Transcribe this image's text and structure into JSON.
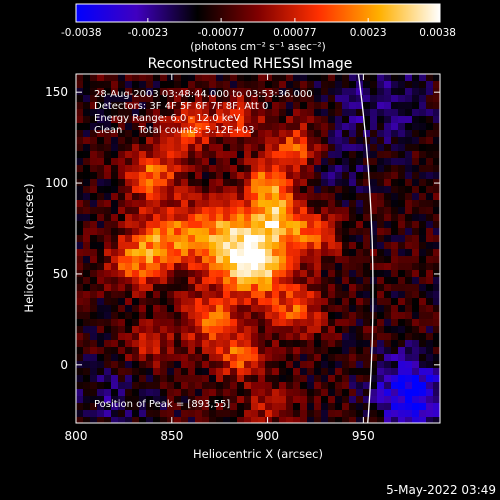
{
  "colorbar": {
    "ticks": [
      "-0.0038",
      "-0.0023",
      "-0.00077",
      "0.00077",
      "0.0023",
      "0.0038"
    ],
    "unit_label": "(photons cm⁻² s⁻¹ asec⁻²)",
    "range": [
      -0.0038,
      0.0038
    ],
    "colors": [
      "#0000ff",
      "#4000c0",
      "#000000",
      "#800000",
      "#ff3000",
      "#ffb000",
      "#ffffff"
    ]
  },
  "chart_data": {
    "type": "heatmap",
    "title": "Reconstructed RHESSI Image",
    "xlabel": "Heliocentric X (arcsec)",
    "ylabel": "Heliocentric Y (arcsec)",
    "xlim": [
      800,
      990
    ],
    "ylim": [
      -32,
      160
    ],
    "x_ticks": [
      800,
      850,
      900,
      950
    ],
    "y_ticks": [
      0,
      50,
      100,
      150
    ],
    "annotations": [
      "28-Aug-2003 03:48:44.000 to 03:53:36.000",
      "Detectors: 3F 4F 5F 6F 7F 8F, Att 0",
      "Energy Range: 6.0 - 12.0 keV",
      "Clean     Total counts: 5.12E+03"
    ],
    "peak_label": "Position of Peak = [893,55]",
    "peak_position": [
      893,
      55
    ],
    "limb_color": "#ffffff",
    "sources": [
      {
        "x": 893,
        "y": 55,
        "value": 0.0038,
        "sigma": 12
      },
      {
        "x": 876,
        "y": 70,
        "value": 0.0026,
        "sigma": 14
      },
      {
        "x": 905,
        "y": 80,
        "value": 0.0027,
        "sigma": 10
      },
      {
        "x": 900,
        "y": 100,
        "value": 0.0022,
        "sigma": 9
      },
      {
        "x": 915,
        "y": 120,
        "value": 0.0021,
        "sigma": 9
      },
      {
        "x": 845,
        "y": 70,
        "value": 0.0022,
        "sigma": 12
      },
      {
        "x": 840,
        "y": 105,
        "value": 0.0022,
        "sigma": 10
      },
      {
        "x": 860,
        "y": 130,
        "value": 0.0019,
        "sigma": 9
      },
      {
        "x": 885,
        "y": 135,
        "value": 0.0016,
        "sigma": 8
      },
      {
        "x": 830,
        "y": 55,
        "value": 0.0017,
        "sigma": 10
      },
      {
        "x": 870,
        "y": 25,
        "value": 0.0021,
        "sigma": 10
      },
      {
        "x": 885,
        "y": 5,
        "value": 0.0019,
        "sigma": 9
      },
      {
        "x": 915,
        "y": 30,
        "value": 0.0018,
        "sigma": 10
      },
      {
        "x": 925,
        "y": 70,
        "value": 0.0016,
        "sigma": 9
      },
      {
        "x": 838,
        "y": 12,
        "value": 0.0012,
        "sigma": 9
      },
      {
        "x": 900,
        "y": -22,
        "value": 0.0011,
        "sigma": 8
      },
      {
        "x": 960,
        "y": 145,
        "value": -0.0016,
        "sigma": 18
      },
      {
        "x": 975,
        "y": -15,
        "value": -0.0032,
        "sigma": 14
      },
      {
        "x": 820,
        "y": -20,
        "value": -0.0014,
        "sigma": 14
      },
      {
        "x": 935,
        "y": 110,
        "value": -0.0012,
        "sigma": 12
      }
    ],
    "background": -0.0009
  },
  "timestamp": "5-May-2022 03:49"
}
